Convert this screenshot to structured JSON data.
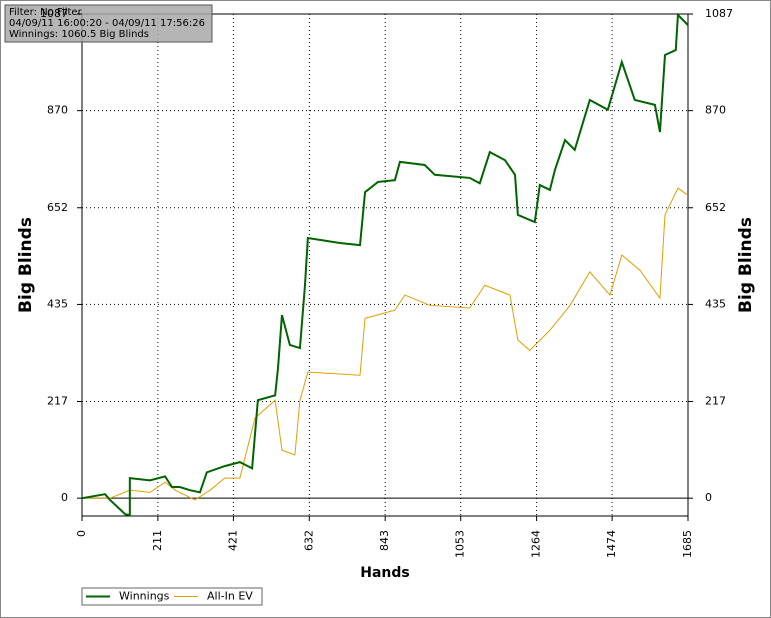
{
  "chart_data": {
    "type": "line",
    "info_box": [
      "Filter: No Filter",
      "04/09/11 16:00:20 - 04/09/11 17:56:26",
      "Winnings: 1060.5 Big Blinds"
    ],
    "x_label": "Hands",
    "y_label": "Big Blinds",
    "y2_label": "Big Blinds",
    "xlim": [
      0,
      1685
    ],
    "xticks": [
      0,
      211,
      421,
      632,
      843,
      1053,
      1264,
      1474,
      1685
    ],
    "ylim": [
      -40,
      1087
    ],
    "yticks": [
      0,
      217,
      435,
      652,
      870,
      1087
    ],
    "y2lim": [
      -40,
      1087
    ],
    "y2ticks": [
      0,
      217,
      435,
      652,
      870,
      1087
    ],
    "grid": true,
    "legend": "bottom-left",
    "series": [
      {
        "name": "Winnings",
        "color": "#006400",
        "x": [
          0,
          64,
          78,
          120,
          133,
          133,
          189,
          231,
          250,
          272,
          300,
          328,
          347,
          397,
          439,
          473,
          489,
          537,
          545,
          556,
          578,
          606,
          620,
          628,
          717,
          773,
          787,
          823,
          870,
          884,
          953,
          981,
          1078,
          1106,
          1134,
          1176,
          1204,
          1212,
          1259,
          1273,
          1301,
          1315,
          1343,
          1370,
          1412,
          1462,
          1501,
          1537,
          1593,
          1607,
          1621,
          1651,
          1657,
          1685
        ],
        "values": [
          0,
          9,
          -4,
          -36,
          -38,
          45,
          40,
          49,
          25,
          25,
          18,
          13,
          58,
          72,
          81,
          67,
          220,
          231,
          292,
          411,
          344,
          337,
          478,
          584,
          573,
          568,
          687,
          710,
          714,
          755,
          748,
          726,
          719,
          707,
          777,
          759,
          726,
          636,
          620,
          703,
          692,
          737,
          804,
          782,
          894,
          872,
          979,
          894,
          883,
          822,
          995,
          1006,
          1085,
          1062
        ]
      },
      {
        "name": "All-In EV",
        "color": "#e0a000",
        "x": [
          0,
          78,
          133,
          189,
          231,
          259,
          314,
          356,
          397,
          439,
          481,
          537,
          556,
          592,
          606,
          628,
          773,
          787,
          870,
          898,
          967,
          1078,
          1120,
          1190,
          1212,
          1245,
          1301,
          1357,
          1412,
          1468,
          1501,
          1551,
          1607,
          1621,
          1657,
          1685
        ],
        "values": [
          0,
          0,
          18,
          13,
          36,
          18,
          -4,
          18,
          45,
          45,
          180,
          220,
          108,
          97,
          220,
          283,
          276,
          404,
          422,
          456,
          433,
          427,
          478,
          456,
          355,
          332,
          377,
          433,
          508,
          456,
          546,
          512,
          449,
          636,
          696,
          680
        ]
      }
    ]
  }
}
